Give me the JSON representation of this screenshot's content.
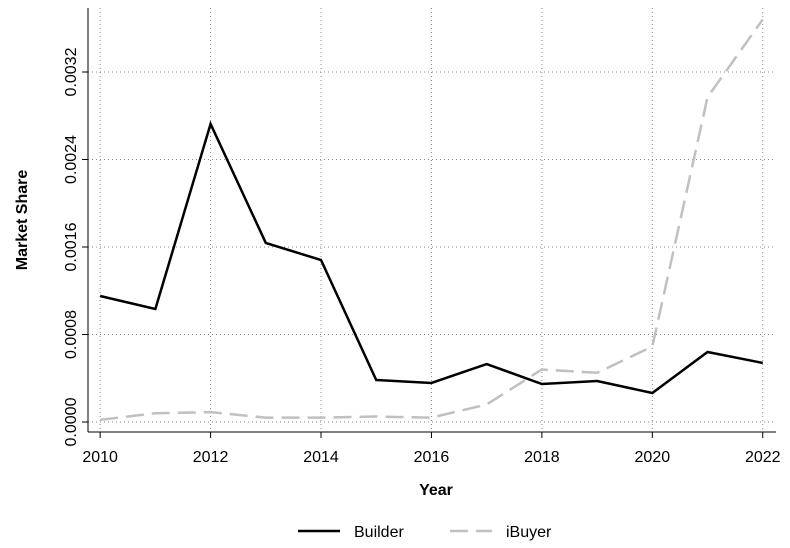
{
  "chart_data": {
    "type": "line",
    "x": [
      2010,
      2011,
      2012,
      2013,
      2014,
      2015,
      2016,
      2017,
      2018,
      2019,
      2020,
      2021,
      2022
    ],
    "xlabel": "Year",
    "ylabel": "Market Share",
    "xlim": [
      2009.78,
      2022.24
    ],
    "xticks": [
      2010,
      2012,
      2014,
      2016,
      2018,
      2020,
      2022
    ],
    "ylim": [
      -9.14e-05,
      0.003785
    ],
    "yticks": [
      {
        "value": 0,
        "label": "0.0000"
      },
      {
        "value": 0.0008,
        "label": "0.0008"
      },
      {
        "value": 0.0016,
        "label": "0.0016"
      },
      {
        "value": 0.0024,
        "label": "0.0024"
      },
      {
        "value": 0.0032,
        "label": "0.0032"
      }
    ],
    "grid": true,
    "legend": "bottom",
    "series": [
      {
        "name": "Builder",
        "color": "#000000",
        "dash": false,
        "values": [
          0.001152,
          0.001033,
          0.002725,
          0.001637,
          0.001481,
          0.000384,
          0.000357,
          0.00053,
          0.000347,
          0.000375,
          0.000265,
          0.00064,
          0.00054
        ]
      },
      {
        "name": "iBuyer",
        "color": "#c0c0c0",
        "dash": true,
        "values": [
          2e-05,
          8e-05,
          9e-05,
          4e-05,
          4e-05,
          5e-05,
          4e-05,
          0.00016,
          0.00048,
          0.00045,
          0.00069,
          0.00297,
          0.00368
        ]
      }
    ]
  }
}
